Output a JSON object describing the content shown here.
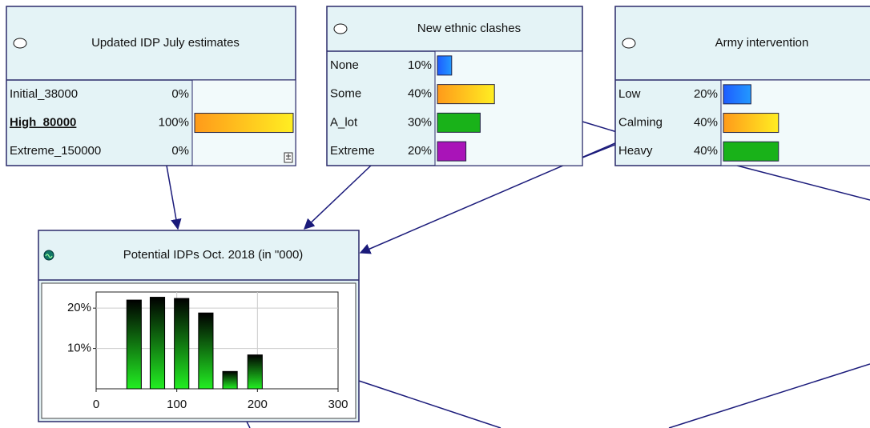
{
  "nodes": [
    {
      "title": "Updated IDP July estimates",
      "states": [
        {
          "name": "Initial_38000",
          "probability": 0,
          "label": "0%",
          "color": "#1e5cff"
        },
        {
          "name": "High_80000",
          "probability": 100,
          "label": "100%",
          "color": "#ff9a1a",
          "selected": true
        },
        {
          "name": "Extreme_150000",
          "probability": 0,
          "label": "0%",
          "color": "#19b219"
        }
      ]
    },
    {
      "title": "New ethnic clashes",
      "states": [
        {
          "name": "None",
          "probability": 10,
          "label": "10%",
          "color": "#1e5cff"
        },
        {
          "name": "Some",
          "probability": 40,
          "label": "40%",
          "color": "#ff9a1a"
        },
        {
          "name": "A_lot",
          "probability": 30,
          "label": "30%",
          "color": "#19b219"
        },
        {
          "name": "Extreme",
          "probability": 20,
          "label": "20%",
          "color": "#a914b8"
        }
      ]
    },
    {
      "title": "Army intervention",
      "states": [
        {
          "name": "Low",
          "probability": 20,
          "label": "20%",
          "color": "#1e5cff"
        },
        {
          "name": "Calming",
          "probability": 40,
          "label": "40%",
          "color": "#ff9a1a"
        },
        {
          "name": "Heavy",
          "probability": 40,
          "label": "40%",
          "color": "#19b219"
        }
      ]
    },
    {
      "title": "Potential IDPs Oct. 2018 (in \"000)",
      "chart": {
        "type": "bar",
        "x": [
          47,
          76,
          106,
          136,
          166,
          197
        ],
        "values": [
          22,
          22.7,
          22.4,
          18.8,
          4.3,
          8.4
        ],
        "color": "#22dd22",
        "xlim": [
          0,
          300
        ],
        "ylim": [
          0,
          24
        ],
        "xticks": [
          0,
          100,
          200,
          300
        ],
        "yticks": [
          {
            "value": 10,
            "label": "10%"
          },
          {
            "value": 20,
            "label": "20%"
          }
        ],
        "grid": true
      }
    }
  ]
}
